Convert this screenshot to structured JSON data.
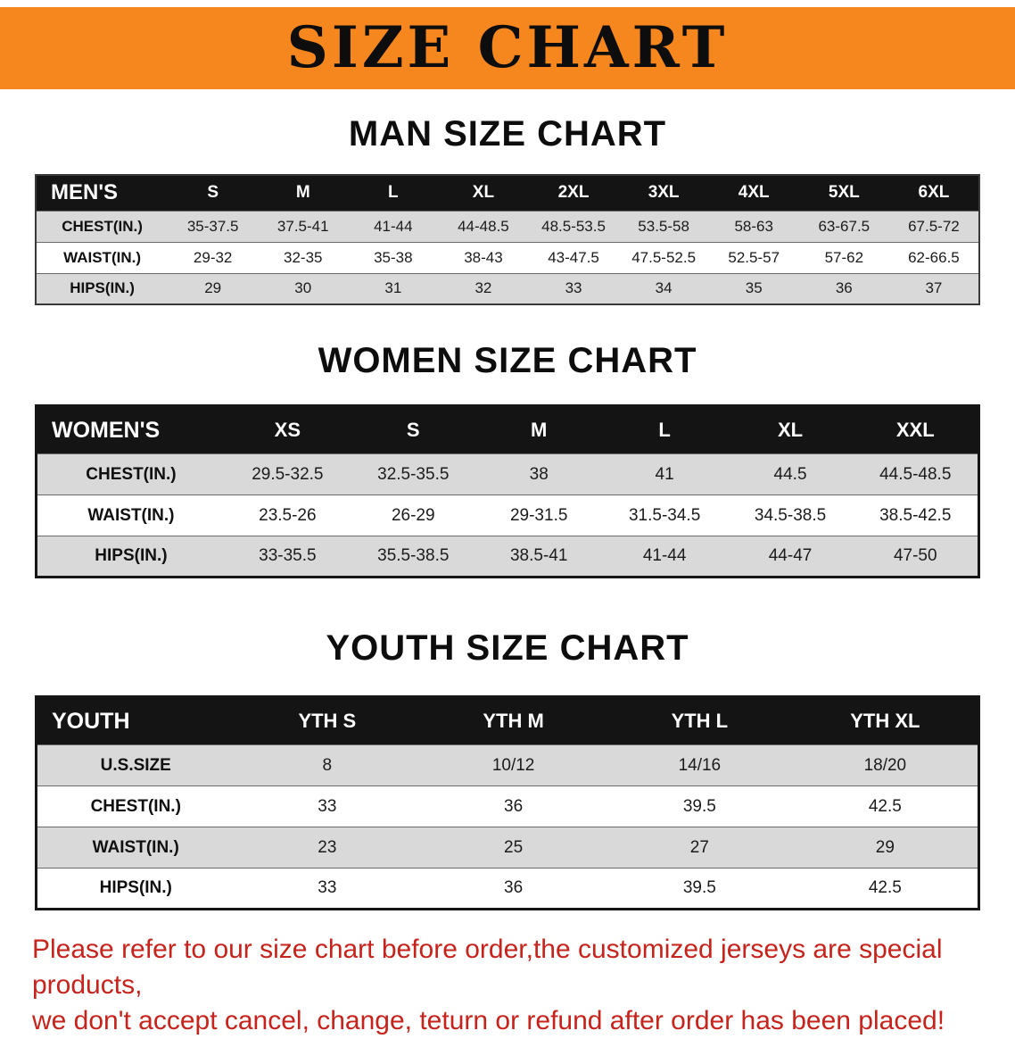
{
  "colors": {
    "banner-bg": "#f6871f",
    "header-bg": "#141414",
    "row-stripe": "#d9d9d9",
    "footer-red": "#c5231b"
  },
  "banner": {
    "title": "SIZE CHART"
  },
  "sections": [
    {
      "heading": "MAN SIZE CHART",
      "header_label": "MEN'S",
      "columns": [
        "S",
        "M",
        "L",
        "XL",
        "2XL",
        "3XL",
        "4XL",
        "5XL",
        "6XL"
      ],
      "rows": [
        {
          "label": "CHEST(IN.)",
          "values": [
            "35-37.5",
            "37.5-41",
            "41-44",
            "44-48.5",
            "48.5-53.5",
            "53.5-58",
            "58-63",
            "63-67.5",
            "67.5-72"
          ]
        },
        {
          "label": "WAIST(IN.)",
          "values": [
            "29-32",
            "32-35",
            "35-38",
            "38-43",
            "43-47.5",
            "47.5-52.5",
            "52.5-57",
            "57-62",
            "62-66.5"
          ]
        },
        {
          "label": "HIPS(IN.)",
          "values": [
            "29",
            "30",
            "31",
            "32",
            "33",
            "34",
            "35",
            "36",
            "37"
          ]
        }
      ]
    },
    {
      "heading": "WOMEN SIZE CHART",
      "header_label": "WOMEN'S",
      "columns": [
        "XS",
        "S",
        "M",
        "L",
        "XL",
        "XXL"
      ],
      "rows": [
        {
          "label": "CHEST(IN.)",
          "values": [
            "29.5-32.5",
            "32.5-35.5",
            "38",
            "41",
            "44.5",
            "44.5-48.5"
          ]
        },
        {
          "label": "WAIST(IN.)",
          "values": [
            "23.5-26",
            "26-29",
            "29-31.5",
            "31.5-34.5",
            "34.5-38.5",
            "38.5-42.5"
          ]
        },
        {
          "label": "HIPS(IN.)",
          "values": [
            "33-35.5",
            "35.5-38.5",
            "38.5-41",
            "41-44",
            "44-47",
            "47-50"
          ]
        }
      ]
    },
    {
      "heading": "YOUTH SIZE CHART",
      "header_label": "YOUTH",
      "columns": [
        "YTH S",
        "YTH M",
        "YTH L",
        "YTH XL"
      ],
      "rows": [
        {
          "label": "U.S.SIZE",
          "values": [
            "8",
            "10/12",
            "14/16",
            "18/20"
          ]
        },
        {
          "label": "CHEST(IN.)",
          "values": [
            "33",
            "36",
            "39.5",
            "42.5"
          ]
        },
        {
          "label": "WAIST(IN.)",
          "values": [
            "23",
            "25",
            "27",
            "29"
          ]
        },
        {
          "label": "HIPS(IN.)",
          "values": [
            "33",
            "36",
            "39.5",
            "42.5"
          ]
        }
      ]
    }
  ],
  "footer": {
    "line1": "Please refer to our size chart before order,the customized jerseys are special products,",
    "line2": "we don't accept cancel, change, teturn or refund after order has been placed!"
  }
}
